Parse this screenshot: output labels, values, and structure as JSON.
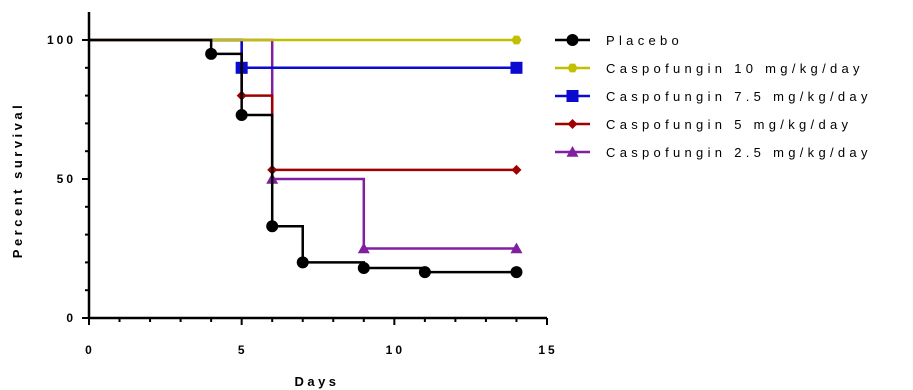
{
  "chart_data": {
    "type": "line",
    "step": true,
    "xlabel": "Days",
    "ylabel": "Percent survival",
    "xlim": [
      0,
      15
    ],
    "ylim": [
      0,
      100
    ],
    "xticks": [
      0,
      5,
      10,
      15
    ],
    "yticks": [
      0,
      50,
      100
    ],
    "grid": false,
    "legend_position": "right",
    "series": [
      {
        "name": "Placebo",
        "color": "#000000",
        "marker": "circle",
        "points": [
          [
            0,
            100
          ],
          [
            4,
            100
          ],
          [
            4,
            95
          ],
          [
            5,
            95
          ],
          [
            5,
            73
          ],
          [
            6,
            73
          ],
          [
            6,
            33
          ],
          [
            7,
            33
          ],
          [
            7,
            20
          ],
          [
            9,
            20
          ],
          [
            9,
            18
          ],
          [
            11,
            18
          ],
          [
            11,
            16.5
          ],
          [
            14,
            16.5
          ]
        ],
        "marker_points": [
          [
            4,
            95
          ],
          [
            5,
            73
          ],
          [
            6,
            33
          ],
          [
            7,
            20
          ],
          [
            9,
            18
          ],
          [
            11,
            16.5
          ],
          [
            14,
            16.5
          ]
        ]
      },
      {
        "name": "Caspofungin 10 mg/kg/day",
        "color": "#c0c000",
        "marker": "hexagon",
        "points": [
          [
            0,
            100
          ],
          [
            14,
            100
          ]
        ],
        "marker_points": [
          [
            14,
            100
          ]
        ]
      },
      {
        "name": "Caspofungin 7.5 mg/kg/day",
        "color": "#0a0ad0",
        "marker": "square",
        "points": [
          [
            0,
            100
          ],
          [
            5,
            100
          ],
          [
            5,
            90
          ],
          [
            14,
            90
          ]
        ],
        "marker_points": [
          [
            5,
            90
          ],
          [
            14,
            90
          ]
        ]
      },
      {
        "name": "Caspofungin 5 mg/kg/day",
        "color": "#a00000",
        "marker": "diamond",
        "points": [
          [
            0,
            100
          ],
          [
            5,
            100
          ],
          [
            5,
            80
          ],
          [
            6,
            80
          ],
          [
            6,
            53.3
          ],
          [
            14,
            53.3
          ]
        ],
        "marker_points": [
          [
            5,
            80
          ],
          [
            6,
            53.3
          ],
          [
            14,
            53.3
          ]
        ]
      },
      {
        "name": "Caspofungin 2.5 mg/kg/day",
        "color": "#8020a0",
        "marker": "triangle",
        "points": [
          [
            0,
            100
          ],
          [
            6,
            100
          ],
          [
            6,
            50
          ],
          [
            9,
            50
          ],
          [
            9,
            25
          ],
          [
            14,
            25
          ]
        ],
        "marker_points": [
          [
            6,
            50
          ],
          [
            9,
            25
          ],
          [
            14,
            25
          ]
        ]
      }
    ]
  }
}
